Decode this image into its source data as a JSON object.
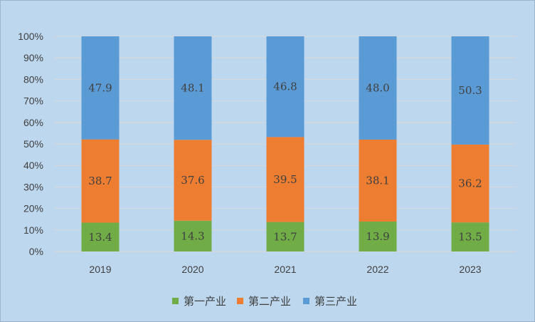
{
  "chart_data": {
    "type": "bar",
    "stacked": true,
    "percent_stacked": true,
    "categories": [
      "2019",
      "2020",
      "2021",
      "2022",
      "2023"
    ],
    "series": [
      {
        "name": "第一产业",
        "color": "#70AD47",
        "values": [
          13.4,
          14.3,
          13.7,
          13.9,
          13.5
        ],
        "labels": [
          "13.4",
          "14.3",
          "13.7",
          "13.9",
          "13.5"
        ]
      },
      {
        "name": "第二产业",
        "color": "#ED7D31",
        "values": [
          38.7,
          37.6,
          39.5,
          38.1,
          36.2
        ],
        "labels": [
          "38.7",
          "37.6",
          "39.5",
          "38.1",
          "36.2"
        ]
      },
      {
        "name": "第三产业",
        "color": "#5B9BD5",
        "values": [
          47.9,
          48.1,
          46.8,
          48.0,
          50.3
        ],
        "labels": [
          "47.9",
          "48.1",
          "46.8",
          "48.0",
          "50.3"
        ]
      }
    ],
    "yticks": [
      "0%",
      "10%",
      "20%",
      "30%",
      "40%",
      "50%",
      "60%",
      "70%",
      "80%",
      "90%",
      "100%"
    ],
    "ylim": [
      0,
      100
    ],
    "grid": true,
    "legend_position": "bottom",
    "title": "",
    "xlabel": "",
    "ylabel": ""
  }
}
